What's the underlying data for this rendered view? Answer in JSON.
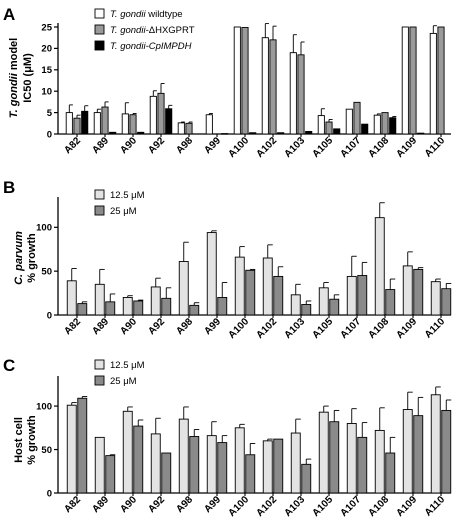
{
  "chart_data": [
    {
      "type": "bar",
      "panel": "A",
      "ylabel": "T. gondii model",
      "ylabel2": "IC50 (μM)",
      "ylim": [
        0,
        25
      ],
      "yticks": [
        "0",
        "5",
        "10",
        "15",
        "20",
        "25"
      ],
      "categories": [
        "A82",
        "A89",
        "A90",
        "A92",
        "A98",
        "A99",
        "A100",
        "A102",
        "A103",
        "A105",
        "A107",
        "A108",
        "A109",
        "A110"
      ],
      "legend": [
        {
          "italic": "T. gondii",
          "rest": " wildtype"
        },
        {
          "italic": "T. gondii",
          "rest": "-ΔHXGPRT"
        },
        {
          "italic": "T. gondii-CpIMPDH",
          "rest": ""
        }
      ],
      "series": [
        {
          "name": "T. gondii wildtype",
          "color": "#ffffff",
          "values": [
            5.0,
            5.0,
            4.7,
            8.8,
            2.6,
            4.5,
            25,
            22.5,
            19.0,
            4.3,
            5.8,
            4.4,
            25,
            23.5
          ],
          "errors": [
            1.8,
            0.8,
            2.6,
            1.3,
            0.2,
            0.3,
            0,
            3.3,
            4.2,
            1.6,
            0,
            0.3,
            0,
            1.8
          ]
        },
        {
          "name": "T. gondii-ΔHXGPRT",
          "color": "#9a9a9a",
          "values": [
            3.7,
            6.3,
            4.5,
            9.5,
            2.5,
            0,
            24.9,
            22.0,
            18.5,
            2.8,
            7.4,
            5.0,
            25,
            25
          ],
          "errors": [
            0.7,
            1.2,
            0.3,
            2.3,
            0.3,
            0,
            0,
            3.2,
            3.0,
            0.6,
            0,
            0,
            0,
            0
          ]
        },
        {
          "name": "T. gondii-CpIMPDH",
          "color": "#000000",
          "values": [
            5.3,
            0.4,
            0.4,
            5.9,
            0,
            0.1,
            0.3,
            0.3,
            0.6,
            1.2,
            2.3,
            3.8,
            0.2,
            0
          ],
          "errors": [
            1.3,
            0,
            0,
            0.8,
            0,
            0,
            0,
            0,
            0,
            0,
            0,
            0.3,
            0,
            0
          ]
        }
      ]
    },
    {
      "type": "bar",
      "panel": "B",
      "ylabel": "C. parvum",
      "ylabel2": "% growth",
      "ylim": [
        0,
        130
      ],
      "yticks": [
        "0",
        "50",
        "100"
      ],
      "categories": [
        "A82",
        "A89",
        "A90",
        "A92",
        "A98",
        "A99",
        "A100",
        "A102",
        "A103",
        "A105",
        "A107",
        "A108",
        "A109",
        "A110"
      ],
      "legend": [
        {
          "italic": "",
          "rest": "12.5 μM"
        },
        {
          "italic": "",
          "rest": "25 μM"
        }
      ],
      "series": [
        {
          "name": "12.5 μM",
          "color": "#e3e3e3",
          "values": [
            39,
            35,
            20,
            32,
            61,
            94,
            66,
            65,
            23,
            31,
            44,
            111,
            56,
            38
          ],
          "errors": [
            14,
            17,
            2,
            10,
            22,
            2,
            12,
            15,
            12,
            6,
            23,
            17,
            16,
            3
          ]
        },
        {
          "name": "25 μM",
          "color": "#8a8a8a",
          "values": [
            13,
            15,
            16,
            19,
            11,
            20,
            51,
            44,
            12,
            18,
            45,
            29,
            52,
            30
          ],
          "errors": [
            2,
            9,
            1,
            12,
            3,
            17,
            1,
            11,
            4,
            5,
            15,
            12,
            2,
            6
          ]
        }
      ]
    },
    {
      "type": "bar",
      "panel": "C",
      "ylabel": "Host cell",
      "ylabel2": "% growth",
      "ylim": [
        0,
        130
      ],
      "yticks": [
        "0",
        "50",
        "100"
      ],
      "categories": [
        "A82",
        "A89",
        "A90",
        "A92",
        "A98",
        "A99",
        "A100",
        "A102",
        "A103",
        "A105",
        "A107",
        "A108",
        "A109",
        "A110"
      ],
      "legend": [
        {
          "italic": "",
          "rest": "12.5 μM"
        },
        {
          "italic": "",
          "rest": "25 μM"
        }
      ],
      "series": [
        {
          "name": "12.5 μM",
          "color": "#e3e3e3",
          "values": [
            101,
            64,
            94,
            68,
            85,
            66,
            75,
            60,
            69,
            93,
            80,
            72,
            96,
            113
          ],
          "errors": [
            3,
            0,
            5,
            18,
            14,
            16,
            4,
            2,
            16,
            7,
            17,
            26,
            20,
            9
          ]
        },
        {
          "name": "25 μM",
          "color": "#8a8a8a",
          "values": [
            109,
            43,
            77,
            46,
            65,
            58,
            44,
            62,
            33,
            82,
            64,
            46,
            89,
            95
          ],
          "errors": [
            2,
            1,
            7,
            0,
            8,
            8,
            13,
            0,
            6,
            13,
            17,
            18,
            21,
            12
          ]
        }
      ]
    }
  ]
}
